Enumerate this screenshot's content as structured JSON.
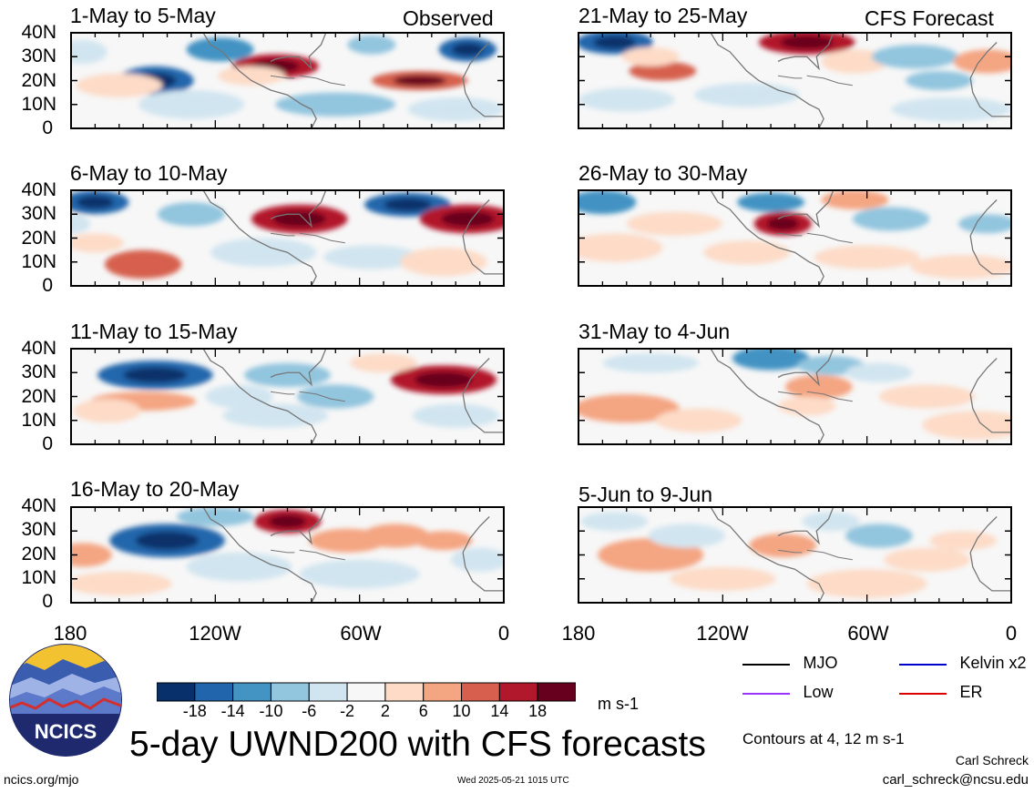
{
  "chart_data": {
    "type": "heatmap",
    "title": "5-day UWND200 with CFS forecasts",
    "units": "m s-1",
    "contour_note": "Contours at 4, 12 m s-1",
    "x_ticks": [
      "180",
      "120W",
      "60W",
      "0"
    ],
    "y_ticks": [
      "40N",
      "30N",
      "20N",
      "10N",
      "0"
    ],
    "xlim": [
      -180,
      0
    ],
    "ylim": [
      0,
      40
    ],
    "colorbar_ticks": [
      "-18",
      "-14",
      "-10",
      "-6",
      "-2",
      "2",
      "6",
      "10",
      "14",
      "18"
    ],
    "colorbar_colors": [
      "#08306b",
      "#2166ac",
      "#4393c3",
      "#92c5de",
      "#d1e5f0",
      "#f7f7f7",
      "#fddbc7",
      "#f4a582",
      "#d6604d",
      "#b2182b",
      "#67001f"
    ],
    "legend": [
      {
        "label": "MJO",
        "color": "#000000"
      },
      {
        "label": "Kelvin x2",
        "color": "#0000cc"
      },
      {
        "label": "Low",
        "color": "#9933ff"
      },
      {
        "label": "ER",
        "color": "#dd0000"
      }
    ],
    "observed_label": "Observed",
    "forecast_label": "CFS Forecast",
    "panels": [
      {
        "title": "1-May to 5-May",
        "group": "observed",
        "blobs": [
          [
            -145,
            20,
            16,
            6,
            -16
          ],
          [
            -118,
            33,
            14,
            5,
            -10
          ],
          [
            -95,
            26,
            18,
            5,
            18
          ],
          [
            -105,
            22,
            14,
            4,
            6
          ],
          [
            -35,
            20,
            20,
            4,
            14
          ],
          [
            -15,
            33,
            12,
            5,
            -14
          ],
          [
            -55,
            35,
            10,
            4,
            -8
          ],
          [
            -160,
            18,
            18,
            5,
            6
          ],
          [
            -130,
            10,
            22,
            6,
            -4
          ],
          [
            -70,
            10,
            25,
            5,
            -6
          ],
          [
            -20,
            8,
            20,
            5,
            -3
          ],
          [
            -175,
            32,
            10,
            5,
            -4
          ]
        ]
      },
      {
        "title": "6-May to 10-May",
        "group": "observed",
        "blobs": [
          [
            -170,
            35,
            14,
            5,
            -16
          ],
          [
            -130,
            30,
            14,
            5,
            -6
          ],
          [
            -85,
            28,
            20,
            6,
            16
          ],
          [
            -40,
            34,
            18,
            5,
            -14
          ],
          [
            -15,
            28,
            20,
            6,
            18
          ],
          [
            -150,
            9,
            16,
            6,
            12
          ],
          [
            -170,
            18,
            12,
            4,
            4
          ],
          [
            -100,
            14,
            22,
            6,
            -4
          ],
          [
            -55,
            12,
            20,
            5,
            -4
          ],
          [
            -25,
            10,
            18,
            6,
            3
          ],
          [
            -180,
            26,
            8,
            4,
            -4
          ]
        ]
      },
      {
        "title": "11-May to 15-May",
        "group": "observed",
        "blobs": [
          [
            -145,
            29,
            24,
            6,
            -14
          ],
          [
            -90,
            29,
            18,
            5,
            -8
          ],
          [
            -25,
            27,
            22,
            6,
            18
          ],
          [
            -150,
            18,
            22,
            4,
            8
          ],
          [
            -165,
            14,
            14,
            5,
            5
          ],
          [
            -110,
            20,
            14,
            5,
            -4
          ],
          [
            -70,
            20,
            16,
            5,
            -6
          ],
          [
            -95,
            12,
            22,
            5,
            -3
          ],
          [
            -50,
            34,
            14,
            4,
            6
          ],
          [
            -20,
            12,
            18,
            5,
            -3
          ]
        ]
      },
      {
        "title": "16-May to 20-May",
        "group": "observed",
        "blobs": [
          [
            -140,
            26,
            24,
            7,
            -16
          ],
          [
            -175,
            20,
            12,
            5,
            10
          ],
          [
            -90,
            34,
            14,
            5,
            18
          ],
          [
            -65,
            26,
            16,
            5,
            8
          ],
          [
            -45,
            28,
            14,
            5,
            10
          ],
          [
            -25,
            26,
            12,
            4,
            8
          ],
          [
            -110,
            15,
            22,
            6,
            -4
          ],
          [
            -160,
            8,
            22,
            5,
            5
          ],
          [
            -60,
            12,
            25,
            6,
            -3
          ],
          [
            -10,
            18,
            12,
            5,
            -3
          ],
          [
            -120,
            36,
            16,
            4,
            -6
          ]
        ]
      },
      {
        "title": "21-May to 25-May",
        "group": "forecast",
        "blobs": [
          [
            -165,
            36,
            16,
            5,
            -16
          ],
          [
            -145,
            24,
            14,
            4,
            12
          ],
          [
            -150,
            30,
            12,
            4,
            6
          ],
          [
            -85,
            36,
            20,
            5,
            18
          ],
          [
            -65,
            28,
            14,
            5,
            6
          ],
          [
            -40,
            30,
            18,
            5,
            -8
          ],
          [
            -10,
            28,
            14,
            5,
            8
          ],
          [
            -30,
            20,
            14,
            4,
            -6
          ],
          [
            -110,
            14,
            22,
            5,
            -4
          ],
          [
            -160,
            12,
            20,
            5,
            -4
          ],
          [
            -25,
            8,
            25,
            5,
            -3
          ]
        ]
      },
      {
        "title": "26-May to 30-May",
        "group": "forecast",
        "blobs": [
          [
            -170,
            35,
            14,
            5,
            -12
          ],
          [
            -140,
            26,
            20,
            5,
            4
          ],
          [
            -100,
            35,
            14,
            4,
            -10
          ],
          [
            -65,
            36,
            14,
            4,
            10
          ],
          [
            -50,
            28,
            16,
            5,
            -8
          ],
          [
            -95,
            26,
            12,
            5,
            18
          ],
          [
            -10,
            26,
            12,
            4,
            -8
          ],
          [
            -165,
            16,
            20,
            6,
            6
          ],
          [
            -110,
            14,
            18,
            5,
            4
          ],
          [
            -60,
            12,
            22,
            5,
            4
          ],
          [
            -20,
            8,
            22,
            5,
            4
          ]
        ]
      },
      {
        "title": "31-May to 4-Jun",
        "group": "forecast",
        "blobs": [
          [
            -150,
            34,
            20,
            4,
            -4
          ],
          [
            -100,
            36,
            16,
            5,
            -10
          ],
          [
            -75,
            33,
            14,
            4,
            -6
          ],
          [
            -160,
            15,
            22,
            6,
            10
          ],
          [
            -130,
            10,
            18,
            5,
            6
          ],
          [
            -80,
            24,
            14,
            5,
            8
          ],
          [
            -85,
            16,
            12,
            4,
            6
          ],
          [
            -35,
            20,
            20,
            5,
            4
          ],
          [
            -15,
            8,
            22,
            6,
            6
          ],
          [
            -55,
            30,
            14,
            4,
            -4
          ]
        ]
      },
      {
        "title": "5-Jun to 9-Jun",
        "group": "forecast",
        "blobs": [
          [
            -150,
            20,
            22,
            7,
            10
          ],
          [
            -135,
            28,
            16,
            5,
            -4
          ],
          [
            -95,
            24,
            14,
            5,
            8
          ],
          [
            -55,
            28,
            14,
            5,
            -8
          ],
          [
            -75,
            34,
            12,
            4,
            -4
          ],
          [
            -35,
            18,
            18,
            5,
            4
          ],
          [
            -20,
            26,
            14,
            4,
            3
          ],
          [
            -120,
            10,
            22,
            5,
            4
          ],
          [
            -60,
            8,
            25,
            6,
            3
          ],
          [
            -165,
            34,
            14,
            4,
            -3
          ]
        ]
      }
    ]
  },
  "footer": {
    "logo_text": "NCICS",
    "site": "ncics.org/mjo",
    "timestamp": "Wed 2025-05-21 1015 UTC",
    "author": "Carl Schreck",
    "email": "carl_schreck@ncsu.edu"
  }
}
